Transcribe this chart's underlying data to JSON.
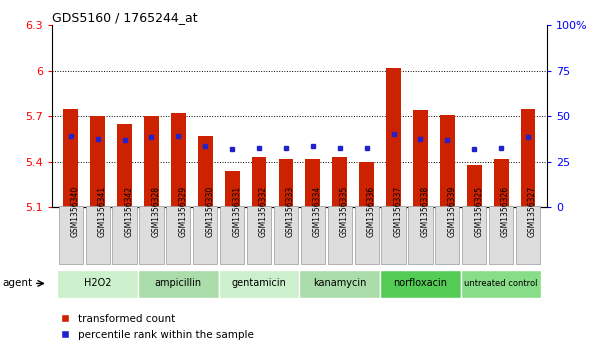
{
  "title": "GDS5160 / 1765244_at",
  "samples": [
    "GSM1356340",
    "GSM1356341",
    "GSM1356342",
    "GSM1356328",
    "GSM1356329",
    "GSM1356330",
    "GSM1356331",
    "GSM1356332",
    "GSM1356333",
    "GSM1356334",
    "GSM1356335",
    "GSM1356336",
    "GSM1356337",
    "GSM1356338",
    "GSM1356339",
    "GSM1356325",
    "GSM1356326",
    "GSM1356327"
  ],
  "bar_values": [
    5.75,
    5.7,
    5.65,
    5.7,
    5.72,
    5.57,
    5.34,
    5.43,
    5.42,
    5.42,
    5.43,
    5.4,
    6.02,
    5.74,
    5.71,
    5.38,
    5.42,
    5.75
  ],
  "blue_markers": [
    5.57,
    5.55,
    5.54,
    5.56,
    5.57,
    5.5,
    5.48,
    5.49,
    5.49,
    5.5,
    5.49,
    5.49,
    5.58,
    5.55,
    5.54,
    5.48,
    5.49,
    5.56
  ],
  "groups": [
    {
      "label": "H2O2",
      "start": 0,
      "end": 3,
      "color": "#ccf0cc"
    },
    {
      "label": "ampicillin",
      "start": 3,
      "end": 6,
      "color": "#aaddaa"
    },
    {
      "label": "gentamicin",
      "start": 6,
      "end": 9,
      "color": "#ccf0cc"
    },
    {
      "label": "kanamycin",
      "start": 9,
      "end": 12,
      "color": "#aaddaa"
    },
    {
      "label": "norfloxacin",
      "start": 12,
      "end": 15,
      "color": "#55cc55"
    },
    {
      "label": "untreated control",
      "start": 15,
      "end": 18,
      "color": "#88dd88"
    }
  ],
  "ylim_left": [
    5.1,
    6.3
  ],
  "ylim_right": [
    0,
    100
  ],
  "yticks_left": [
    5.1,
    5.4,
    5.7,
    6.0,
    6.3
  ],
  "yticks_right": [
    0,
    25,
    50,
    75,
    100
  ],
  "ytick_labels_left": [
    "5.1",
    "5.4",
    "5.7",
    "6",
    "6.3"
  ],
  "ytick_labels_right": [
    "0",
    "25",
    "50",
    "75",
    "100%"
  ],
  "bar_color": "#cc2200",
  "blue_color": "#2222cc",
  "bar_bottom": 5.1,
  "legend_red": "transformed count",
  "legend_blue": "percentile rank within the sample",
  "grid_vals": [
    5.4,
    5.7,
    6.0
  ],
  "sample_box_color": "#dddddd",
  "sample_box_edge": "#999999"
}
